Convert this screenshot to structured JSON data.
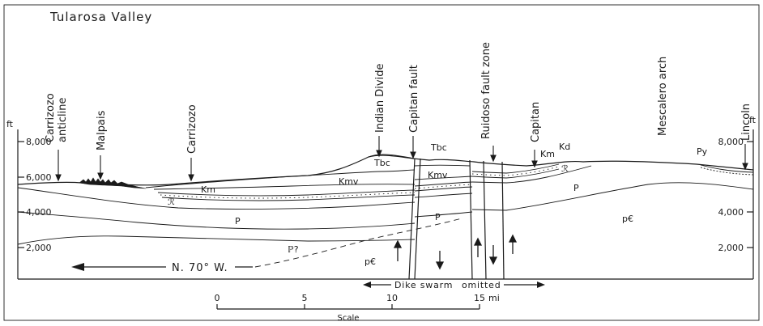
{
  "title": "Tularosa Valley",
  "elevation_unit": "ft",
  "elevation_ticks_left": [
    "8,000",
    "6,000",
    "4,000",
    "2,000"
  ],
  "elevation_ticks_right": [
    "8,000",
    "4,000",
    "2,000"
  ],
  "place_labels": {
    "carrizozo_anticline_1": "Carrizozo",
    "carrizozo_anticline_2": "anticline",
    "malpais": "Malpais",
    "carrizozo": "Carrizozo",
    "indian_divide": "Indian Divide",
    "capitan_fault": "Capitan fault",
    "ruidoso_fault_zone": "Ruidoso fault zone",
    "capitan": "Capitan",
    "mescalero_arch": "Mescalero arch",
    "lincoln": "Lincoln"
  },
  "unit_labels": {
    "tbc_1": "Tbc",
    "tbc_2": "Tbc",
    "kmv_1": "Kmv",
    "kmv_2": "Kmv",
    "km_1": "Km",
    "km_2": "Km",
    "kd": "Kd",
    "tr_1": "ℛ",
    "tr_2": "ℛ",
    "p_1": "P",
    "p_2": "P",
    "p_3": "P",
    "p_query": "ℙ?",
    "pc_1": "p€",
    "pc_2": "p€",
    "py": "Py"
  },
  "direction_label": "N. 70° W.",
  "dike_label_left": "Dike swarm",
  "dike_label_right": "omitted",
  "scale": {
    "ticks": [
      "0",
      "5",
      "10",
      "15"
    ],
    "unit": "mi",
    "caption": "Scale"
  }
}
